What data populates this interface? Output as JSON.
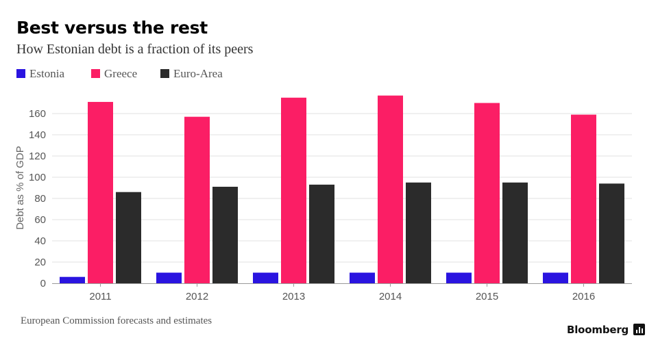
{
  "title": "Best versus the rest",
  "subtitle": "How Estonian debt is a fraction of its peers",
  "legend": [
    {
      "label": "Estonia",
      "color": "#2a14e0"
    },
    {
      "label": "Greece",
      "color": "#fb1e65"
    },
    {
      "label": "Euro-Area",
      "color": "#2b2b2b"
    }
  ],
  "source": "European Commission forecasts and estimates",
  "brand": "Bloomberg",
  "brand_icon": "bloomberg-logo-icon",
  "chart_data": {
    "type": "bar",
    "categories": [
      "2011",
      "2012",
      "2013",
      "2014",
      "2015",
      "2016"
    ],
    "series": [
      {
        "name": "Estonia",
        "color": "#2a14e0",
        "values": [
          6,
          10,
          10,
          10,
          10,
          10
        ]
      },
      {
        "name": "Greece",
        "color": "#fb1e65",
        "values": [
          171,
          157,
          175,
          177,
          170,
          159
        ]
      },
      {
        "name": "Euro-Area",
        "color": "#2b2b2b",
        "values": [
          86,
          91,
          93,
          95,
          95,
          94
        ]
      }
    ],
    "ylabel": "Debt as % of GDP",
    "ylim": [
      0,
      180
    ],
    "yticks": [
      "0",
      "20",
      "40",
      "60",
      "80",
      "100",
      "120",
      "140",
      "160"
    ],
    "grid": true,
    "legend_position": "top-left"
  }
}
